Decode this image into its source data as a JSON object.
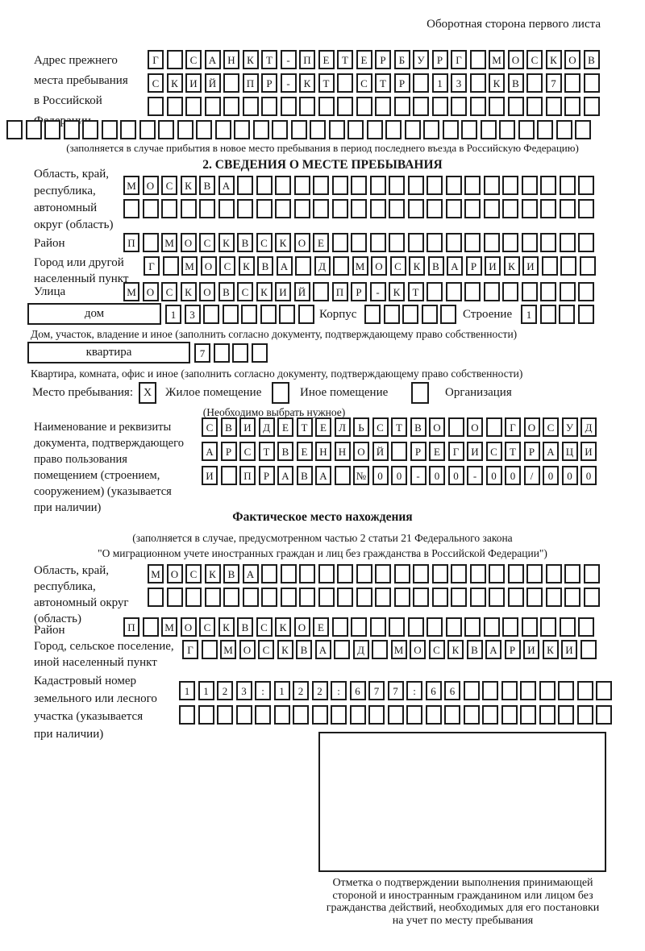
{
  "page": {
    "header_note": "Оборотная сторона первого листа",
    "prev_note": "(заполняется в случае прибытия в новое место пребывания в период последнего въезда в Российскую Федерацию)",
    "section2_title": "2. СВЕДЕНИЯ О МЕСТЕ ПРЕБЫВАНИЯ"
  },
  "prev_address": {
    "label_lines": [
      "Адрес прежнего",
      "места пребывания",
      "в Российской",
      "Федерации"
    ],
    "row1": [
      "Г",
      "",
      "С",
      "А",
      "Н",
      "К",
      "Т",
      "-",
      "П",
      "Е",
      "Т",
      "Е",
      "Р",
      "Б",
      "У",
      "Р",
      "Г",
      "",
      "М",
      "О",
      "С",
      "К",
      "О",
      "В"
    ],
    "row2": [
      "С",
      "К",
      "И",
      "Й",
      "",
      "П",
      "Р",
      "-",
      "К",
      "Т",
      "",
      "С",
      "Т",
      "Р",
      "",
      "1",
      "3",
      "",
      "К",
      "В",
      "",
      "7",
      "",
      ""
    ]
  },
  "place": {
    "region": {
      "label_lines": [
        "Область, край,",
        "республика,",
        "автономный",
        "округ (область)"
      ],
      "row1": [
        "М",
        "О",
        "С",
        "К",
        "В",
        "А"
      ]
    },
    "district": {
      "label": "Район",
      "row": [
        "П",
        "",
        "М",
        "О",
        "С",
        "К",
        "В",
        "С",
        "К",
        "О",
        "Е"
      ]
    },
    "city": {
      "label_lines": [
        "Город или другой",
        "населенный пункт"
      ],
      "row": [
        "Г",
        "",
        "М",
        "О",
        "С",
        "К",
        "В",
        "А",
        "",
        "Д",
        "",
        "М",
        "О",
        "С",
        "К",
        "В",
        "А",
        "Р",
        "И",
        "К",
        "И"
      ]
    },
    "street": {
      "label": "Улица",
      "row": [
        "М",
        "О",
        "С",
        "К",
        "О",
        "В",
        "С",
        "К",
        "И",
        "Й",
        "",
        "П",
        "Р",
        "-",
        "К",
        "Т"
      ]
    },
    "house": {
      "label": "дом",
      "cells": [
        "1",
        "3"
      ],
      "korpus_label": "Корпус",
      "stroenie_label": "Строение",
      "stroenie_cells": [
        "1"
      ],
      "note": "Дом, участок, владение и иное (заполнить согласно документу, подтверждающему право собственности)"
    },
    "apartment": {
      "label": "квартира",
      "cells": [
        "7"
      ],
      "note": "Квартира, комната, офис и иное (заполнить согласно документу, подтверждающему право собственности)"
    },
    "stay_type": {
      "label": "Место пребывания:",
      "options": [
        {
          "label": "Жилое помещение",
          "mark": "X"
        },
        {
          "label": "Иное помещение",
          "mark": ""
        },
        {
          "label": "Организация",
          "mark": ""
        }
      ],
      "note": "(Необходимо выбрать нужное)"
    },
    "document": {
      "label_lines": [
        "Наименование и реквизиты",
        "документа, подтверждающего",
        "право пользования",
        "помещением (строением,",
        "сооружением) (указывается",
        "при наличии)"
      ],
      "row1": [
        "С",
        "В",
        "И",
        "Д",
        "Е",
        "Т",
        "Е",
        "Л",
        "Ь",
        "С",
        "Т",
        "В",
        "О",
        "",
        "О",
        "",
        "Г",
        "О",
        "С",
        "У",
        "Д"
      ],
      "row2": [
        "А",
        "Р",
        "С",
        "Т",
        "В",
        "Е",
        "Н",
        "Н",
        "О",
        "Й",
        "",
        "Р",
        "Е",
        "Г",
        "И",
        "С",
        "Т",
        "Р",
        "А",
        "Ц",
        "И"
      ],
      "row3": [
        "И",
        "",
        "П",
        "Р",
        "А",
        "В",
        "А",
        "",
        "№",
        "0",
        "0",
        "-",
        "0",
        "0",
        "-",
        "0",
        "0",
        "/",
        "0",
        "0",
        "0"
      ]
    }
  },
  "actual_location": {
    "title": "Фактическое место нахождения",
    "note_line1": "(заполняется в случае, предусмотренном частью 2 статьи 21 Федерального закона",
    "note_line2": "\"О миграционном учете иностранных граждан и лиц без гражданства в Российской Федерации\")",
    "region": {
      "label_lines": [
        "Область, край,",
        "республика,",
        "автономный округ",
        "(область)"
      ],
      "row1": [
        "М",
        "О",
        "С",
        "К",
        "В",
        "А"
      ]
    },
    "district": {
      "label": "Район",
      "row": [
        "П",
        "",
        "М",
        "О",
        "С",
        "К",
        "В",
        "С",
        "К",
        "О",
        "Е"
      ]
    },
    "city": {
      "label_lines": [
        "Город, сельское поселение,",
        "иной населенный пункт"
      ],
      "row": [
        "Г",
        "",
        "М",
        "О",
        "С",
        "К",
        "В",
        "А",
        "",
        "Д",
        "",
        "М",
        "О",
        "С",
        "К",
        "В",
        "А",
        "Р",
        "И",
        "К",
        "И"
      ]
    },
    "cadastre": {
      "label_lines": [
        "Кадастровый номер",
        "земельного или лесного",
        "участка (указывается",
        "при наличии)"
      ],
      "row1": [
        "1",
        "1",
        "2",
        "3",
        ":",
        "1",
        "2",
        "2",
        ":",
        "6",
        "7",
        "7",
        ":",
        "6",
        "6"
      ]
    },
    "stamp_caption_lines": [
      "Отметка о подтверждении выполнения принимающей",
      "стороной и иностранным гражданином или лицом без",
      "гражданства действий, необходимых для его постановки",
      "на учет по месту пребывания"
    ]
  }
}
